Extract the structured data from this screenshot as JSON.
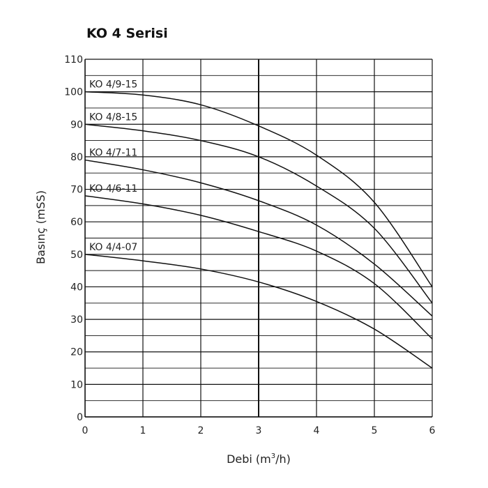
{
  "chart_data": {
    "type": "line",
    "title": "KO 4 Serisi",
    "xlabel": "Debi (m",
    "xlabel_sup": "3",
    "xlabel_end": "/h)",
    "ylabel": "Basınç (mSS)",
    "xlim": [
      0,
      6
    ],
    "ylim": [
      0,
      110
    ],
    "xticks": [
      "0",
      "1",
      "2",
      "3",
      "4",
      "5",
      "6"
    ],
    "yticks": [
      "0",
      "10",
      "20",
      "30",
      "40",
      "50",
      "60",
      "70",
      "80",
      "90",
      "100",
      "110"
    ],
    "grid": true,
    "series": [
      {
        "name": "KO 4/9-15",
        "x": [
          0,
          1,
          2,
          3,
          4,
          5,
          6
        ],
        "y": [
          100,
          99,
          96,
          89.5,
          80.5,
          66,
          40
        ]
      },
      {
        "name": "KO 4/8-15",
        "x": [
          0,
          1,
          2,
          3,
          4,
          5,
          6
        ],
        "y": [
          90,
          88,
          85,
          80,
          71,
          58,
          35
        ]
      },
      {
        "name": "KO 4/7-11",
        "x": [
          0,
          1,
          2,
          3,
          4,
          5,
          6
        ],
        "y": [
          79,
          76,
          72,
          66.5,
          59,
          47,
          31
        ]
      },
      {
        "name": "KO 4/6-11",
        "x": [
          0,
          1,
          2,
          3,
          4,
          5,
          6
        ],
        "y": [
          68,
          65.5,
          62,
          57,
          51,
          41,
          24
        ]
      },
      {
        "name": "KO 4/4-07",
        "x": [
          0,
          1,
          2,
          3,
          4,
          5,
          6
        ],
        "y": [
          50,
          48,
          45.5,
          41.5,
          35.5,
          27,
          15
        ]
      }
    ]
  }
}
